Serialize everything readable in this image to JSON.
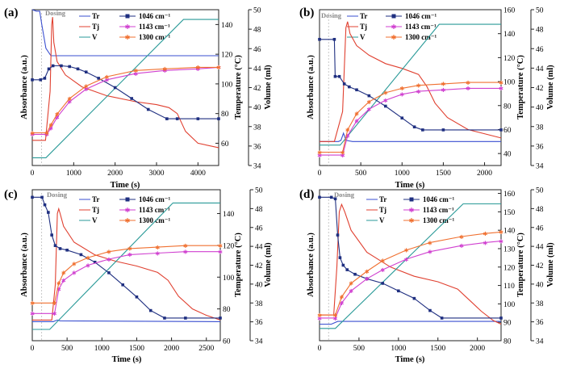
{
  "colors": {
    "Tr": "#3a4fd0",
    "Tj": "#e04030",
    "V": "#2a9a98",
    "s1046": "#1f2f80",
    "s1143": "#d040d0",
    "s1300": "#f07030"
  },
  "chart_data": [
    {
      "panel": "(a)",
      "type": "line",
      "annotation": "Dosing",
      "xlabel": "Time (s)",
      "ylabel_left": "Absorbance (a.u.)",
      "ylabel_right1": "Temperature (°C)",
      "ylabel_right2": "Volume (ml)",
      "xlim": [
        0,
        4500
      ],
      "xticks": [
        0,
        1000,
        2000,
        3000,
        4000
      ],
      "tick_labels": [
        "0",
        "1000",
        "2000",
        "3000",
        "4000"
      ],
      "temp_lim": [
        45,
        150
      ],
      "temp_ticks": [
        60,
        80,
        100,
        120,
        140
      ],
      "temp_tick_labels": [
        "60",
        "80",
        "100",
        "120",
        "140"
      ],
      "vol_lim": [
        34,
        50
      ],
      "vol_ticks": [
        34,
        36,
        38,
        40,
        42,
        44,
        46,
        48,
        50
      ],
      "vol_tick_labels": [
        "34",
        "36",
        "38",
        "40",
        "42",
        "44",
        "46",
        "48",
        "50"
      ],
      "legend": [
        "Tr",
        "Tj",
        "V",
        "1046 cm⁻¹",
        "1143 cm⁻¹",
        "1300 cm⁻¹"
      ],
      "series": [
        {
          "name": "Tr",
          "key": "Tr",
          "x": [
            0,
            100,
            180,
            230,
            330,
            450,
            900,
            3500,
            4500
          ],
          "y": [
            150,
            149,
            149,
            140,
            124,
            119,
            119,
            119,
            119
          ]
        },
        {
          "name": "Tj",
          "key": "Tj",
          "x": [
            0,
            200,
            320,
            430,
            470,
            490,
            520,
            600,
            800,
            1200,
            1800,
            2500,
            3000,
            3300,
            3500,
            3700,
            4000,
            4500
          ],
          "y": [
            62,
            62,
            62,
            95,
            140,
            145,
            128,
            115,
            106,
            98,
            92,
            88,
            86,
            84,
            80,
            68,
            60,
            57
          ]
        },
        {
          "name": "V",
          "key": "V",
          "x": [
            0,
            330,
            3650,
            4500
          ],
          "y": [
            34.8,
            34.8,
            49.0,
            49.0
          ]
        },
        {
          "name": "1046 cm⁻¹",
          "key": "s1046",
          "marker": "square",
          "x": [
            0,
            200,
            300,
            400,
            500,
            700,
            900,
            1100,
            1300,
            1600,
            2000,
            2400,
            2800,
            3250,
            3500,
            4000,
            4500
          ],
          "y": [
            55,
            55,
            56,
            62,
            64,
            64,
            63.5,
            62,
            60,
            56,
            50,
            43,
            36,
            30,
            30,
            30,
            30
          ]
        },
        {
          "name": "1143 cm⁻¹",
          "key": "s1143",
          "marker": "star",
          "x": [
            0,
            350,
            450,
            600,
            900,
            1300,
            1800,
            2500,
            3200,
            4000,
            4500
          ],
          "y": [
            20,
            20,
            24,
            31,
            41,
            49,
            55,
            59,
            61,
            62,
            63
          ]
        },
        {
          "name": "1300 cm⁻¹",
          "key": "s1300",
          "marker": "star",
          "x": [
            0,
            350,
            450,
            600,
            900,
            1300,
            1800,
            2500,
            3200,
            4000,
            4500
          ],
          "y": [
            21,
            21,
            26,
            33,
            43,
            51,
            57,
            61,
            62,
            63,
            63
          ]
        }
      ]
    },
    {
      "panel": "(b)",
      "type": "line",
      "annotation": "Dosing",
      "xlabel": "Time (s)",
      "ylabel_left": "Absorbance (a.u.)",
      "ylabel_right1": "Temperature (°C)",
      "ylabel_right2": "Volume (ml)",
      "xlim": [
        0,
        2200
      ],
      "xticks": [
        0,
        500,
        1000,
        1500,
        2000
      ],
      "tick_labels": [
        "0",
        "500",
        "1000",
        "1500",
        "2000"
      ],
      "temp_lim": [
        30,
        160
      ],
      "temp_ticks": [
        40,
        60,
        80,
        100,
        120,
        140,
        160
      ],
      "temp_tick_labels": [
        "40",
        "60",
        "80",
        "100",
        "120",
        "140",
        "160"
      ],
      "vol_lim": [
        34,
        50
      ],
      "vol_ticks": [
        34,
        36,
        38,
        40,
        42,
        44,
        46,
        48,
        50
      ],
      "vol_tick_labels": [
        "34",
        "36",
        "38",
        "40",
        "42",
        "44",
        "46",
        "48",
        "50"
      ],
      "legend": [
        "Tr",
        "Tj",
        "V",
        "1046 cm⁻¹",
        "1143 cm⁻¹",
        "1300 cm⁻¹"
      ],
      "series": [
        {
          "name": "Tr",
          "key": "Tr",
          "x": [
            0,
            150,
            230,
            260,
            290,
            320,
            400,
            2200
          ],
          "y": [
            50,
            50,
            50,
            51,
            57,
            51,
            50,
            50
          ]
        },
        {
          "name": "Tj",
          "key": "Tj",
          "x": [
            0,
            180,
            280,
            320,
            340,
            370,
            450,
            600,
            800,
            1000,
            1200,
            1300,
            1400,
            1550,
            1800,
            2200
          ],
          "y": [
            50,
            50,
            75,
            145,
            150,
            140,
            130,
            122,
            115,
            111,
            106,
            96,
            82,
            70,
            60,
            53
          ]
        },
        {
          "name": "V",
          "key": "V",
          "x": [
            0,
            250,
            1450,
            2200
          ],
          "y": [
            36.1,
            36.1,
            48.5,
            48.5
          ]
        },
        {
          "name": "1046 cm⁻¹",
          "key": "s1046",
          "marker": "square",
          "x": [
            0,
            180,
            190,
            240,
            300,
            360,
            450,
            600,
            800,
            1000,
            1150,
            1250,
            1500,
            2200
          ],
          "y": [
            80,
            80,
            55,
            55,
            50,
            48,
            46,
            42,
            35,
            27,
            21,
            19,
            19,
            19
          ]
        },
        {
          "name": "1143 cm⁻¹",
          "key": "s1143",
          "marker": "star",
          "x": [
            0,
            280,
            340,
            450,
            600,
            800,
            1000,
            1200,
            1500,
            1800,
            2200
          ],
          "y": [
            2,
            2,
            15,
            25,
            33,
            39,
            43,
            45,
            46,
            47,
            47
          ]
        },
        {
          "name": "1300 cm⁻¹",
          "key": "s1300",
          "marker": "star",
          "x": [
            0,
            280,
            340,
            450,
            600,
            800,
            1000,
            1200,
            1500,
            1800,
            2200
          ],
          "y": [
            4,
            4,
            19,
            30,
            38,
            44,
            47,
            49,
            50,
            51,
            51
          ]
        }
      ]
    },
    {
      "panel": "(c)",
      "type": "line",
      "annotation": "Dosing",
      "xlabel": "Time (s)",
      "ylabel_left": "Absorbance (a.u.)",
      "ylabel_right1": "Temperature (°C)",
      "ylabel_right2": "Volume (ml)",
      "xlim": [
        0,
        2700
      ],
      "xticks": [
        0,
        500,
        1000,
        1500,
        2000,
        2500
      ],
      "tick_labels": [
        "0",
        "500",
        "1000",
        "1500",
        "2000",
        "2500"
      ],
      "temp_lim": [
        60,
        155
      ],
      "temp_ticks": [
        60,
        80,
        100,
        120,
        140
      ],
      "temp_tick_labels": [
        "60",
        "80",
        "100",
        "120",
        "140"
      ],
      "vol_lim": [
        34,
        50
      ],
      "vol_ticks": [
        34,
        36,
        38,
        40,
        42,
        44,
        46,
        48,
        50
      ],
      "vol_tick_labels": [
        "34",
        "36",
        "38",
        "40",
        "42",
        "44",
        "46",
        "48",
        "50"
      ],
      "legend": [
        "Tr",
        "Tj",
        "V",
        "1046 cm⁻¹",
        "1143 cm⁻¹",
        "1300 cm⁻¹"
      ],
      "series": [
        {
          "name": "Tr",
          "key": "Tr",
          "x": [
            0,
            300,
            330,
            360,
            400,
            2700
          ],
          "y": [
            72,
            72,
            72.5,
            73,
            72.5,
            72
          ]
        },
        {
          "name": "Tj",
          "key": "Tj",
          "x": [
            0,
            280,
            330,
            360,
            380,
            400,
            450,
            600,
            900,
            1200,
            1500,
            1800,
            1950,
            2100,
            2300,
            2500,
            2700
          ],
          "y": [
            73,
            73,
            95,
            140,
            143,
            140,
            132,
            122,
            114,
            110,
            107,
            103,
            98,
            88,
            80,
            76,
            73
          ]
        },
        {
          "name": "V",
          "key": "V",
          "x": [
            0,
            250,
            2020,
            2700
          ],
          "y": [
            35.2,
            35.2,
            48.6,
            48.6
          ]
        },
        {
          "name": "1046 cm⁻¹",
          "key": "s1046",
          "marker": "square",
          "x": [
            0,
            140,
            180,
            230,
            280,
            330,
            400,
            500,
            700,
            900,
            1100,
            1300,
            1500,
            1700,
            1900,
            2200,
            2700
          ],
          "y": [
            95,
            95,
            90,
            85,
            70,
            63,
            61,
            60,
            57,
            52,
            45,
            37,
            29,
            20,
            15,
            15,
            15
          ]
        },
        {
          "name": "1143 cm⁻¹",
          "key": "s1143",
          "marker": "star",
          "x": [
            0,
            320,
            380,
            450,
            600,
            800,
            1100,
            1400,
            1800,
            2200,
            2700
          ],
          "y": [
            18,
            18,
            34,
            40,
            45,
            50,
            54,
            57,
            58,
            59,
            59
          ]
        },
        {
          "name": "1300 cm⁻¹",
          "key": "s1300",
          "marker": "star",
          "x": [
            0,
            320,
            380,
            450,
            600,
            800,
            1100,
            1400,
            1800,
            2200,
            2700
          ],
          "y": [
            25,
            25,
            38,
            45,
            51,
            55,
            59,
            61,
            62,
            63,
            63
          ]
        }
      ]
    },
    {
      "panel": "(d)",
      "type": "line",
      "annotation": "Dosing",
      "xlabel": "Time (s)",
      "ylabel_left": "Absorbance (a.u.)",
      "ylabel_right1": "Temperature (°C)",
      "ylabel_right2": "Volume (ml)",
      "xlim": [
        0,
        2300
      ],
      "xticks": [
        0,
        500,
        1000,
        1500,
        2000
      ],
      "tick_labels": [
        "0",
        "500",
        "1000",
        "1500",
        "2000"
      ],
      "temp_lim": [
        80,
        162
      ],
      "temp_ticks": [
        80,
        90,
        100,
        110,
        120,
        130,
        140,
        150,
        160
      ],
      "temp_tick_labels": [
        "80",
        "90",
        "100",
        "110",
        "120",
        "130",
        "140",
        "150",
        "160"
      ],
      "vol_lim": [
        34,
        50
      ],
      "vol_ticks": [
        34,
        36,
        38,
        40,
        42,
        44,
        46,
        48,
        50
      ],
      "vol_tick_labels": [
        "34",
        "36",
        "38",
        "40",
        "42",
        "44",
        "46",
        "48",
        "50"
      ],
      "legend": [
        "Tr",
        "Tj",
        "V",
        "1046 cm⁻¹",
        "1143 cm⁻¹",
        "1300 cm⁻¹"
      ],
      "series": [
        {
          "name": "Tr",
          "key": "Tr",
          "x": [
            0,
            150,
            230,
            2300
          ],
          "y": [
            89,
            89,
            90.5,
            90.5
          ]
        },
        {
          "name": "Tj",
          "key": "Tj",
          "x": [
            0,
            180,
            220,
            250,
            280,
            320,
            400,
            600,
            900,
            1200,
            1500,
            1750,
            1900,
            2050,
            2200,
            2300
          ],
          "y": [
            94,
            94,
            120,
            150,
            154,
            150,
            140,
            128,
            120,
            115,
            112,
            108,
            102,
            96,
            91,
            89
          ]
        },
        {
          "name": "V",
          "key": "V",
          "x": [
            0,
            200,
            1820,
            2300
          ],
          "y": [
            35.3,
            35.3,
            48.5,
            48.5
          ]
        },
        {
          "name": "1046 cm⁻¹",
          "key": "s1046",
          "marker": "square",
          "x": [
            0,
            150,
            200,
            230,
            260,
            300,
            350,
            450,
            600,
            800,
            1000,
            1200,
            1400,
            1550,
            2300
          ],
          "y": [
            95,
            95,
            94,
            70,
            55,
            50,
            47,
            44,
            41,
            38,
            33,
            28,
            20,
            15,
            15
          ]
        },
        {
          "name": "1143 cm⁻¹",
          "key": "s1143",
          "marker": "star",
          "x": [
            0,
            200,
            280,
            400,
            600,
            800,
            1100,
            1400,
            1800,
            2100,
            2300
          ],
          "y": [
            15,
            15,
            25,
            33,
            41,
            47,
            54,
            59,
            63,
            65,
            66
          ]
        },
        {
          "name": "1300 cm⁻¹",
          "key": "s1300",
          "marker": "star",
          "x": [
            0,
            200,
            280,
            400,
            600,
            800,
            1100,
            1400,
            1800,
            2100,
            2300
          ],
          "y": [
            17,
            17,
            29,
            38,
            46,
            53,
            60,
            65,
            69,
            71,
            72
          ]
        }
      ]
    }
  ]
}
